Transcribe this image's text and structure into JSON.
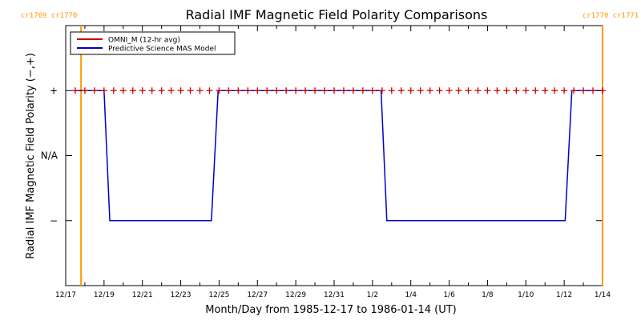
{
  "chart_data": {
    "type": "line",
    "title": "Radial IMF Magnetic Field Polarity Comparisons",
    "xlabel": "Month/Day from 1985-12-17 to 1986-01-14 (UT)",
    "ylabel": "Radial IMF Magnetic Field Polarity (−,+)",
    "xlim_days": [
      0,
      28
    ],
    "x_start_date": "1985-12-17",
    "x_tick_labels": [
      "12/17",
      "12/19",
      "12/21",
      "12/23",
      "12/25",
      "12/27",
      "12/29",
      "12/31",
      "1/2",
      "1/4",
      "1/6",
      "1/8",
      "1/10",
      "1/12",
      "1/14"
    ],
    "ylim": [
      -1,
      1
    ],
    "y_ticks": [
      {
        "value": 0.5,
        "label": "+"
      },
      {
        "value": 0,
        "label": "N/A"
      },
      {
        "value": -0.5,
        "label": "−"
      }
    ],
    "carrington_markers": [
      {
        "x_day": 0.8,
        "labels": [
          "cr1769",
          "cr1770"
        ],
        "side": "left"
      },
      {
        "x_day": 28.0,
        "labels": [
          "cr1770",
          "cr1771"
        ],
        "side": "right"
      }
    ],
    "legend": {
      "position": "top-left",
      "entries": [
        "OMNI_M (12-hr avg)",
        "Predictive Science MAS Model"
      ]
    },
    "series": [
      {
        "name": "OMNI_M (12-hr avg)",
        "color": "#cc0000",
        "marker": "plus",
        "x": [
          0.5,
          1.0,
          1.5,
          2.0,
          2.5,
          3.0,
          3.5,
          4.0,
          4.5,
          5.0,
          5.5,
          6.0,
          6.5,
          7.0,
          7.5,
          8.0,
          8.5,
          9.0,
          9.5,
          10.0,
          10.5,
          11.0,
          11.5,
          12.0,
          12.5,
          13.0,
          13.5,
          14.0,
          14.5,
          15.0,
          15.5,
          16.0,
          16.5,
          17.0,
          17.5,
          18.0,
          18.5,
          19.0,
          19.5,
          20.0,
          20.5,
          21.0,
          21.5,
          22.0,
          22.5,
          23.0,
          23.5,
          24.0,
          24.5,
          25.0,
          25.5,
          26.0,
          26.5,
          27.0,
          27.5,
          28.0
        ],
        "y": [
          0.5,
          0.5,
          0.5,
          0.5,
          0.5,
          0.5,
          0.5,
          0.5,
          0.5,
          0.5,
          0.5,
          0.5,
          0.5,
          0.5,
          0.5,
          0.5,
          0.5,
          0.5,
          0.5,
          0.5,
          0.5,
          0.5,
          0.5,
          0.5,
          0.5,
          0.5,
          0.5,
          0.5,
          0.5,
          0.5,
          0.5,
          0.5,
          0.5,
          0.5,
          0.5,
          0.5,
          0.5,
          0.5,
          0.5,
          0.5,
          0.5,
          0.5,
          0.5,
          0.5,
          0.5,
          0.5,
          0.5,
          0.5,
          0.5,
          0.5,
          0.5,
          0.5,
          0.5,
          0.5,
          0.5,
          0.5
        ]
      },
      {
        "name": "Predictive Science MAS Model",
        "color": "#0000cc",
        "marker": "none",
        "x": [
          0.5,
          2.0,
          2.3,
          7.6,
          7.95,
          16.45,
          16.75,
          26.05,
          26.4,
          28.0
        ],
        "y": [
          0.5,
          0.5,
          -0.5,
          -0.5,
          0.5,
          0.5,
          -0.5,
          -0.5,
          0.5,
          0.5
        ]
      }
    ]
  }
}
